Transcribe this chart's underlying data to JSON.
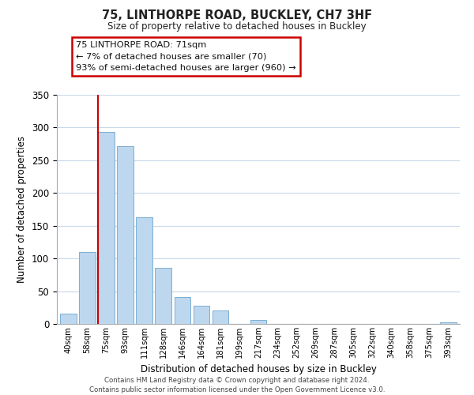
{
  "title": "75, LINTHORPE ROAD, BUCKLEY, CH7 3HF",
  "subtitle": "Size of property relative to detached houses in Buckley",
  "xlabel": "Distribution of detached houses by size in Buckley",
  "ylabel": "Number of detached properties",
  "bar_labels": [
    "40sqm",
    "58sqm",
    "75sqm",
    "93sqm",
    "111sqm",
    "128sqm",
    "146sqm",
    "164sqm",
    "181sqm",
    "199sqm",
    "217sqm",
    "234sqm",
    "252sqm",
    "269sqm",
    "287sqm",
    "305sqm",
    "322sqm",
    "340sqm",
    "358sqm",
    "375sqm",
    "393sqm"
  ],
  "bar_heights": [
    16,
    110,
    293,
    271,
    163,
    86,
    41,
    28,
    21,
    0,
    6,
    0,
    0,
    0,
    0,
    0,
    0,
    0,
    0,
    0,
    2
  ],
  "bar_color": "#bdd7ee",
  "bar_edge_color": "#7bafd4",
  "highlight_bar_index": 2,
  "highlight_color": "#cc0000",
  "ylim": [
    0,
    350
  ],
  "yticks": [
    0,
    50,
    100,
    150,
    200,
    250,
    300,
    350
  ],
  "annotation_title": "75 LINTHORPE ROAD: 71sqm",
  "annotation_line1": "← 7% of detached houses are smaller (70)",
  "annotation_line2": "93% of semi-detached houses are larger (960) →",
  "annotation_box_color": "#ffffff",
  "annotation_box_edge": "#cc0000",
  "footer_line1": "Contains HM Land Registry data © Crown copyright and database right 2024.",
  "footer_line2": "Contains public sector information licensed under the Open Government Licence v3.0.",
  "background_color": "#ffffff",
  "grid_color": "#c8d8e8"
}
